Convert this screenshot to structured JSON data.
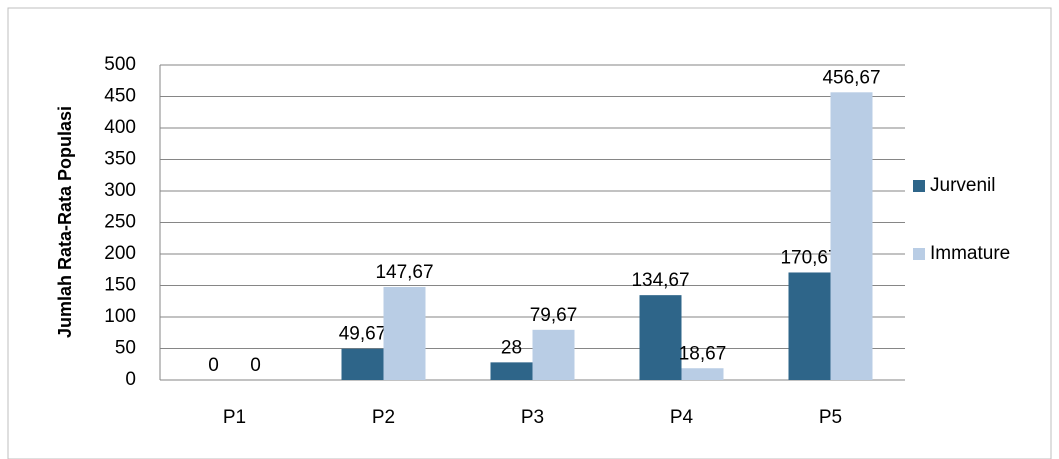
{
  "chart_data": {
    "type": "bar",
    "y_label": "Jumlah Rata-Rata Populasi",
    "categories": [
      "P1",
      "P2",
      "P3",
      "P4",
      "P5"
    ],
    "series": [
      {
        "name": "Jurvenil",
        "color": "#2e6589",
        "values": [
          0,
          49.67,
          28,
          134.67,
          170.67
        ],
        "value_labels": [
          "0",
          "49,67",
          "28",
          "134,67",
          "170,67"
        ]
      },
      {
        "name": "Immature",
        "color": "#b9cde5",
        "values": [
          0,
          147.67,
          79.67,
          18.67,
          456.67
        ],
        "value_labels": [
          "0",
          "147,67",
          "79,67",
          "18,67",
          "456,67"
        ]
      }
    ],
    "ylim": [
      0,
      500
    ],
    "yticks": [
      0,
      50,
      100,
      150,
      200,
      250,
      300,
      350,
      400,
      450,
      500
    ],
    "grid": true,
    "legend": "right"
  }
}
